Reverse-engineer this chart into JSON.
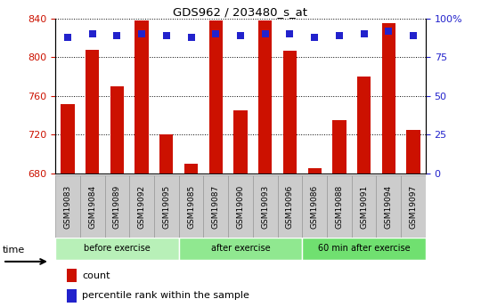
{
  "title": "GDS962 / 203480_s_at",
  "samples": [
    "GSM19083",
    "GSM19084",
    "GSM19089",
    "GSM19092",
    "GSM19095",
    "GSM19085",
    "GSM19087",
    "GSM19090",
    "GSM19093",
    "GSM19096",
    "GSM19086",
    "GSM19088",
    "GSM19091",
    "GSM19094",
    "GSM19097"
  ],
  "counts": [
    752,
    808,
    770,
    838,
    720,
    690,
    838,
    745,
    838,
    807,
    685,
    735,
    780,
    835,
    725
  ],
  "percentiles": [
    88,
    90,
    89,
    90,
    89,
    88,
    90,
    89,
    90,
    90,
    88,
    89,
    90,
    92,
    89
  ],
  "groups": [
    {
      "label": "before exercise",
      "start": 0,
      "end": 5,
      "color": "#b8f0b8"
    },
    {
      "label": "after exercise",
      "start": 5,
      "end": 10,
      "color": "#90e890"
    },
    {
      "label": "60 min after exercise",
      "start": 10,
      "end": 15,
      "color": "#70e070"
    }
  ],
  "bar_color": "#cc1100",
  "dot_color": "#2222cc",
  "ylim_left": [
    680,
    840
  ],
  "ylim_right": [
    0,
    100
  ],
  "yticks_left": [
    680,
    720,
    760,
    800,
    840
  ],
  "yticks_right": [
    0,
    25,
    50,
    75,
    100
  ],
  "ytick_right_labels": [
    "0",
    "25",
    "50",
    "75",
    "100%"
  ],
  "background_color": "#ffffff",
  "bar_width": 0.55,
  "dot_size": 40,
  "label_box_color": "#cccccc",
  "label_box_edge": "#999999"
}
